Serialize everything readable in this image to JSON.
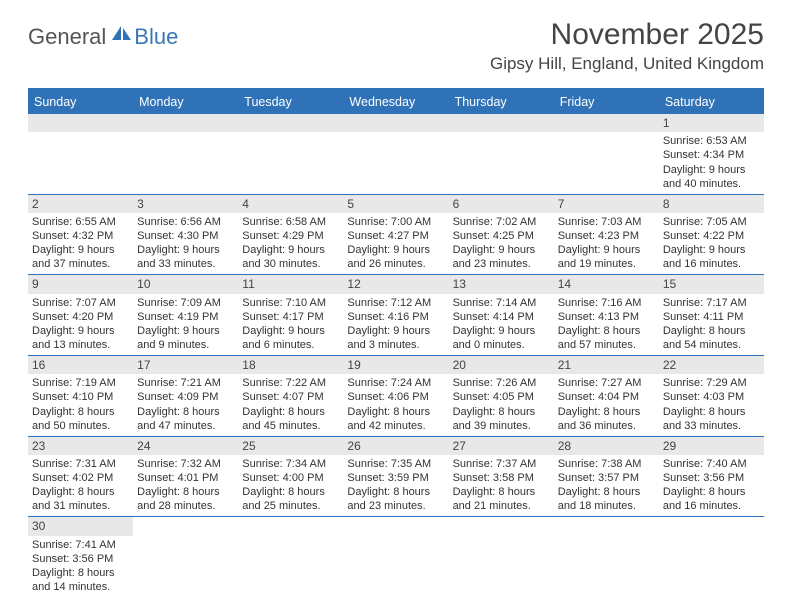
{
  "brand": {
    "part1": "General",
    "part2": "Blue"
  },
  "title": "November 2025",
  "location": "Gipsy Hill, England, United Kingdom",
  "colors": {
    "header_bar": "#2f72b8",
    "daynum_bg": "#e8e8e8",
    "text": "#333333",
    "brand_gray": "#555555",
    "brand_blue": "#3a78b5"
  },
  "typography": {
    "title_fontsize": 30,
    "location_fontsize": 17,
    "dayhead_fontsize": 12.5,
    "cell_fontsize": 11
  },
  "day_headers": [
    "Sunday",
    "Monday",
    "Tuesday",
    "Wednesday",
    "Thursday",
    "Friday",
    "Saturday"
  ],
  "weeks": [
    [
      null,
      null,
      null,
      null,
      null,
      null,
      {
        "n": "1",
        "sr": "6:53 AM",
        "ss": "4:34 PM",
        "dl1": "9 hours",
        "dl2": "and 40 minutes."
      }
    ],
    [
      {
        "n": "2",
        "sr": "6:55 AM",
        "ss": "4:32 PM",
        "dl1": "9 hours",
        "dl2": "and 37 minutes."
      },
      {
        "n": "3",
        "sr": "6:56 AM",
        "ss": "4:30 PM",
        "dl1": "9 hours",
        "dl2": "and 33 minutes."
      },
      {
        "n": "4",
        "sr": "6:58 AM",
        "ss": "4:29 PM",
        "dl1": "9 hours",
        "dl2": "and 30 minutes."
      },
      {
        "n": "5",
        "sr": "7:00 AM",
        "ss": "4:27 PM",
        "dl1": "9 hours",
        "dl2": "and 26 minutes."
      },
      {
        "n": "6",
        "sr": "7:02 AM",
        "ss": "4:25 PM",
        "dl1": "9 hours",
        "dl2": "and 23 minutes."
      },
      {
        "n": "7",
        "sr": "7:03 AM",
        "ss": "4:23 PM",
        "dl1": "9 hours",
        "dl2": "and 19 minutes."
      },
      {
        "n": "8",
        "sr": "7:05 AM",
        "ss": "4:22 PM",
        "dl1": "9 hours",
        "dl2": "and 16 minutes."
      }
    ],
    [
      {
        "n": "9",
        "sr": "7:07 AM",
        "ss": "4:20 PM",
        "dl1": "9 hours",
        "dl2": "and 13 minutes."
      },
      {
        "n": "10",
        "sr": "7:09 AM",
        "ss": "4:19 PM",
        "dl1": "9 hours",
        "dl2": "and 9 minutes."
      },
      {
        "n": "11",
        "sr": "7:10 AM",
        "ss": "4:17 PM",
        "dl1": "9 hours",
        "dl2": "and 6 minutes."
      },
      {
        "n": "12",
        "sr": "7:12 AM",
        "ss": "4:16 PM",
        "dl1": "9 hours",
        "dl2": "and 3 minutes."
      },
      {
        "n": "13",
        "sr": "7:14 AM",
        "ss": "4:14 PM",
        "dl1": "9 hours",
        "dl2": "and 0 minutes."
      },
      {
        "n": "14",
        "sr": "7:16 AM",
        "ss": "4:13 PM",
        "dl1": "8 hours",
        "dl2": "and 57 minutes."
      },
      {
        "n": "15",
        "sr": "7:17 AM",
        "ss": "4:11 PM",
        "dl1": "8 hours",
        "dl2": "and 54 minutes."
      }
    ],
    [
      {
        "n": "16",
        "sr": "7:19 AM",
        "ss": "4:10 PM",
        "dl1": "8 hours",
        "dl2": "and 50 minutes."
      },
      {
        "n": "17",
        "sr": "7:21 AM",
        "ss": "4:09 PM",
        "dl1": "8 hours",
        "dl2": "and 47 minutes."
      },
      {
        "n": "18",
        "sr": "7:22 AM",
        "ss": "4:07 PM",
        "dl1": "8 hours",
        "dl2": "and 45 minutes."
      },
      {
        "n": "19",
        "sr": "7:24 AM",
        "ss": "4:06 PM",
        "dl1": "8 hours",
        "dl2": "and 42 minutes."
      },
      {
        "n": "20",
        "sr": "7:26 AM",
        "ss": "4:05 PM",
        "dl1": "8 hours",
        "dl2": "and 39 minutes."
      },
      {
        "n": "21",
        "sr": "7:27 AM",
        "ss": "4:04 PM",
        "dl1": "8 hours",
        "dl2": "and 36 minutes."
      },
      {
        "n": "22",
        "sr": "7:29 AM",
        "ss": "4:03 PM",
        "dl1": "8 hours",
        "dl2": "and 33 minutes."
      }
    ],
    [
      {
        "n": "23",
        "sr": "7:31 AM",
        "ss": "4:02 PM",
        "dl1": "8 hours",
        "dl2": "and 31 minutes."
      },
      {
        "n": "24",
        "sr": "7:32 AM",
        "ss": "4:01 PM",
        "dl1": "8 hours",
        "dl2": "and 28 minutes."
      },
      {
        "n": "25",
        "sr": "7:34 AM",
        "ss": "4:00 PM",
        "dl1": "8 hours",
        "dl2": "and 25 minutes."
      },
      {
        "n": "26",
        "sr": "7:35 AM",
        "ss": "3:59 PM",
        "dl1": "8 hours",
        "dl2": "and 23 minutes."
      },
      {
        "n": "27",
        "sr": "7:37 AM",
        "ss": "3:58 PM",
        "dl1": "8 hours",
        "dl2": "and 21 minutes."
      },
      {
        "n": "28",
        "sr": "7:38 AM",
        "ss": "3:57 PM",
        "dl1": "8 hours",
        "dl2": "and 18 minutes."
      },
      {
        "n": "29",
        "sr": "7:40 AM",
        "ss": "3:56 PM",
        "dl1": "8 hours",
        "dl2": "and 16 minutes."
      }
    ],
    [
      {
        "n": "30",
        "sr": "7:41 AM",
        "ss": "3:56 PM",
        "dl1": "8 hours",
        "dl2": "and 14 minutes."
      },
      null,
      null,
      null,
      null,
      null,
      null
    ]
  ],
  "labels": {
    "sunrise": "Sunrise:",
    "sunset": "Sunset:",
    "daylight": "Daylight:"
  }
}
